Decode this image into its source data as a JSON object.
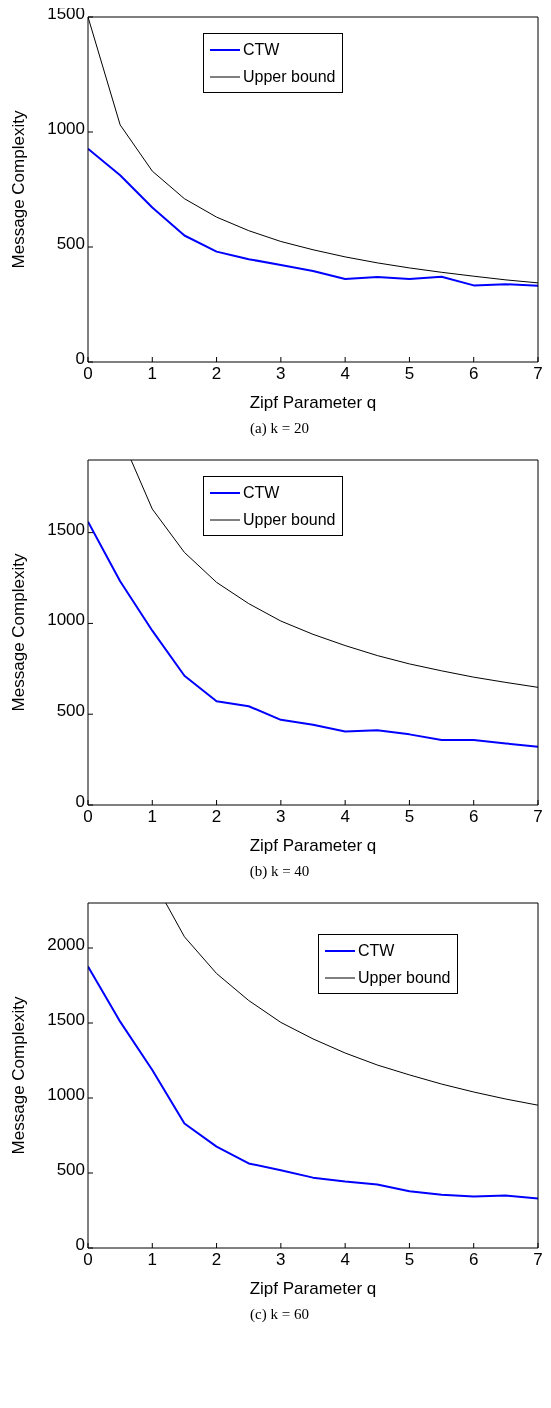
{
  "chart_data": [
    {
      "type": "line",
      "title": "(a) k = 20",
      "xlabel": "Zipf Parameter q",
      "ylabel": "Message Complexity",
      "x": [
        0,
        0.5,
        1,
        1.5,
        2,
        2.5,
        3,
        3.5,
        4,
        4.5,
        5,
        5.5,
        6,
        6.5,
        7
      ],
      "xlim": [
        0,
        7
      ],
      "xticks": [
        0,
        1,
        2,
        3,
        4,
        5,
        6,
        7
      ],
      "ylim": [
        0,
        1500
      ],
      "yticks": [
        0,
        500,
        1000,
        1500
      ],
      "grid": false,
      "legend": "top",
      "series": [
        {
          "name": "CTW",
          "color": "#0000ff",
          "values": [
            927,
            812,
            672,
            550,
            480,
            447,
            422,
            396,
            361,
            370,
            361,
            371,
            333,
            338,
            332
          ]
        },
        {
          "name": "Upper bound",
          "color": "#000000",
          "values": [
            1500,
            1031,
            830,
            710,
            630,
            571,
            524,
            488,
            457,
            431,
            409,
            390,
            373,
            357,
            344
          ]
        }
      ]
    },
    {
      "type": "line",
      "title": "(b) k = 40",
      "xlabel": "Zipf Parameter q",
      "ylabel": "Message Complexity",
      "x": [
        0,
        0.5,
        1,
        1.5,
        2,
        2.5,
        3,
        3.5,
        4,
        4.5,
        5,
        5.5,
        6,
        6.5,
        7
      ],
      "xlim": [
        0,
        7
      ],
      "xticks": [
        0,
        1,
        2,
        3,
        4,
        5,
        6,
        7
      ],
      "ylim": [
        0,
        1900
      ],
      "yticks": [
        0,
        500,
        1000,
        1500
      ],
      "grid": false,
      "legend": "top",
      "series": [
        {
          "name": "CTW",
          "color": "#0000ff",
          "values": [
            1560,
            1232,
            960,
            712,
            571,
            544,
            469,
            442,
            405,
            412,
            389,
            358,
            358,
            339,
            321
          ]
        },
        {
          "name": "Upper bound",
          "color": "#000000",
          "x": [
            0.67,
            1,
            1.5,
            2,
            2.5,
            3,
            3.5,
            4,
            4.5,
            5,
            5.5,
            6,
            6.5,
            7
          ],
          "values": [
            1900,
            1630,
            1391,
            1226,
            1109,
            1013,
            940,
            878,
            823,
            777,
            739,
            704,
            675,
            648
          ]
        }
      ]
    },
    {
      "type": "line",
      "title": "(c) k = 60",
      "xlabel": "Zipf Parameter q",
      "ylabel": "Message Complexity",
      "x": [
        0,
        0.5,
        1,
        1.5,
        2,
        2.5,
        3,
        3.5,
        4,
        4.5,
        5,
        5.5,
        6,
        6.5,
        7
      ],
      "xlim": [
        0,
        7
      ],
      "xticks": [
        0,
        1,
        2,
        3,
        4,
        5,
        6,
        7
      ],
      "ylim": [
        0,
        2300
      ],
      "yticks": [
        0,
        500,
        1000,
        1500,
        2000
      ],
      "grid": false,
      "legend": "top right",
      "series": [
        {
          "name": "CTW",
          "color": "#0000ff",
          "values": [
            1877,
            1509,
            1187,
            830,
            676,
            564,
            518,
            469,
            443,
            423,
            379,
            355,
            344,
            350,
            330
          ]
        },
        {
          "name": "Upper bound",
          "color": "#000000",
          "x": [
            1.21,
            1.5,
            2,
            2.5,
            3,
            3.5,
            4,
            4.5,
            5,
            5.5,
            6,
            6.5,
            7
          ],
          "values": [
            2300,
            2075,
            1830,
            1650,
            1504,
            1394,
            1300,
            1220,
            1154,
            1093,
            1040,
            993,
            952
          ]
        }
      ]
    }
  ]
}
